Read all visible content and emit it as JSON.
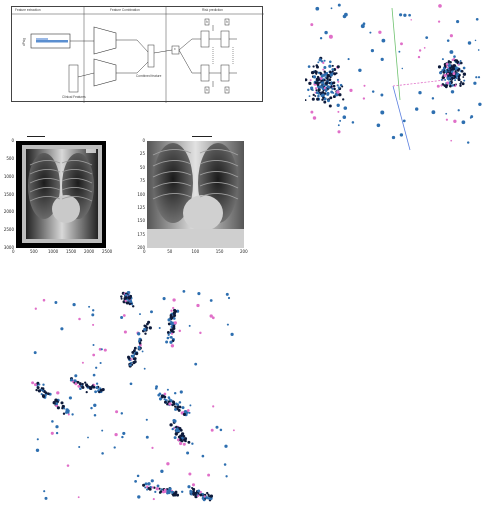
{
  "diagram": {
    "sections": [
      "Feature extraction",
      "Feature Combination",
      "Risk prediction"
    ],
    "input_label": "dPsig",
    "clinical_label": "Clinical Features",
    "combined_label": "Combined feature",
    "label_x": "x",
    "label_h": "h"
  },
  "xray_left": {
    "x_ticks": [
      "0",
      "500",
      "1000",
      "1500",
      "2000",
      "2500"
    ],
    "y_ticks": [
      "0",
      "500",
      "1000",
      "1500",
      "2000",
      "2500",
      "3000"
    ]
  },
  "xray_right": {
    "x_ticks": [
      "0",
      "50",
      "100",
      "150",
      "200"
    ],
    "y_ticks": [
      "0",
      "25",
      "50",
      "75",
      "100",
      "125",
      "150",
      "175",
      "200"
    ]
  },
  "colors": {
    "blue": "#2e6fb0",
    "pink": "#e06fc8",
    "dark": "#0d1a3a",
    "green": "#6fc26f"
  }
}
